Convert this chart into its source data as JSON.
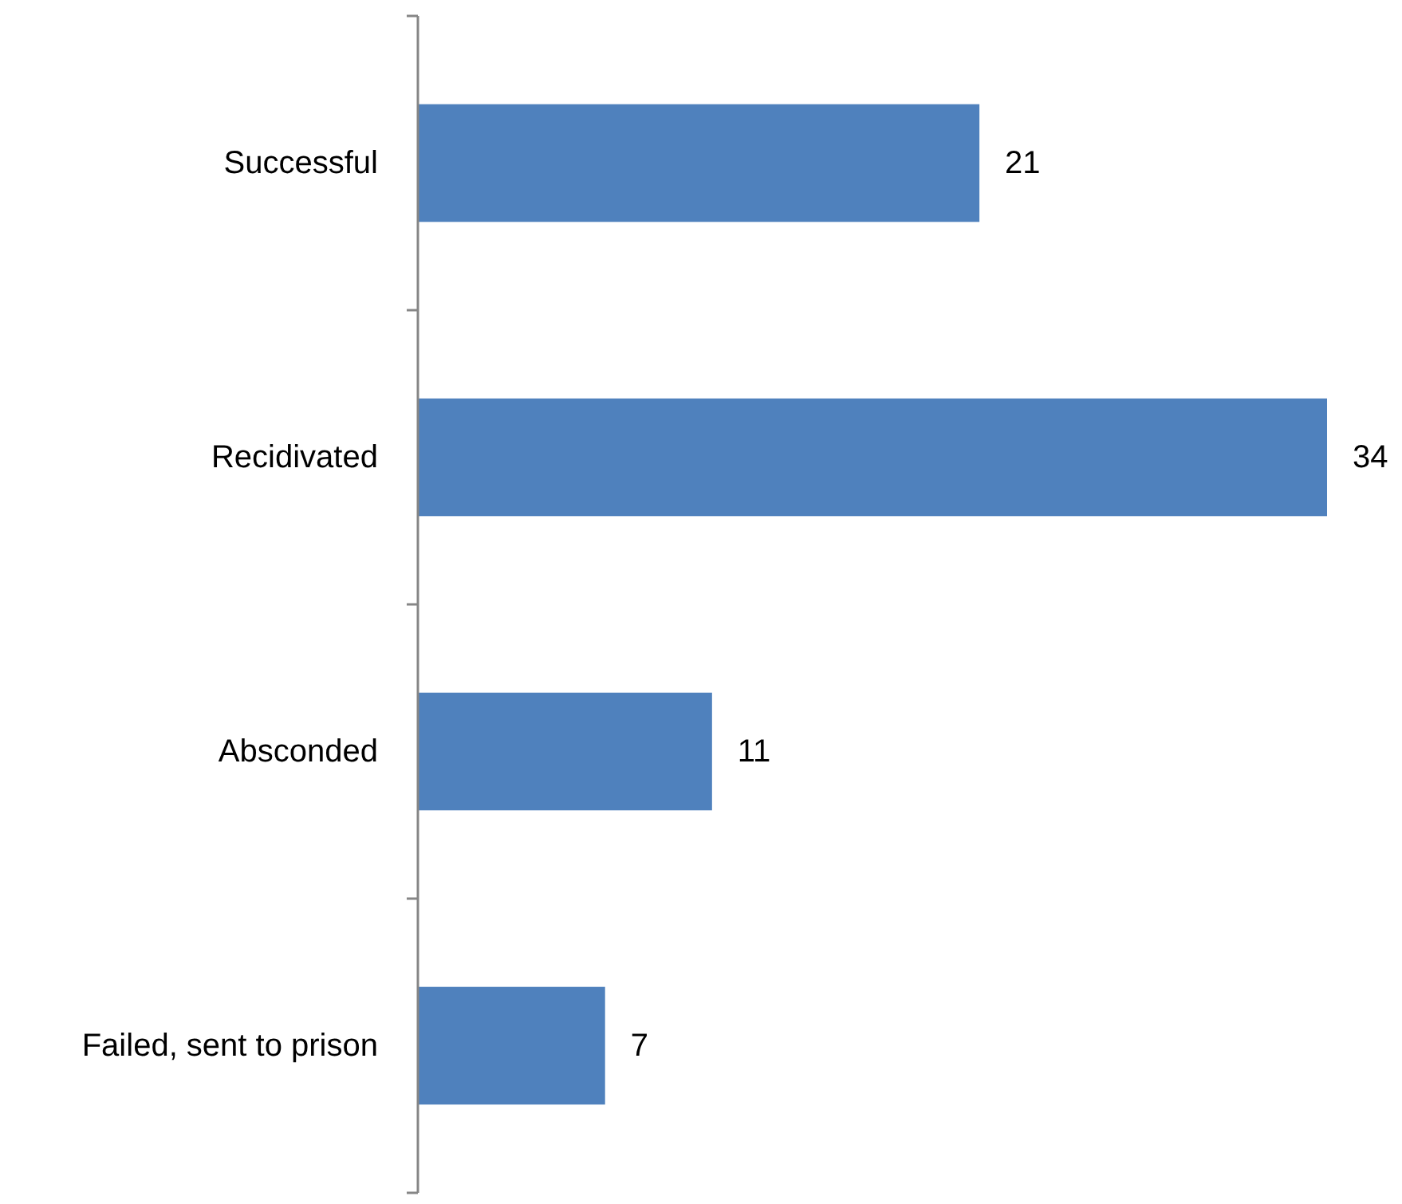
{
  "chart_data": {
    "type": "bar",
    "orientation": "horizontal",
    "categories": [
      "Successful",
      "Recidivated",
      "Absconded",
      "Failed, sent to prison"
    ],
    "values": [
      21,
      34,
      11,
      7
    ],
    "color": "#4f81bd",
    "data_labels": true
  }
}
